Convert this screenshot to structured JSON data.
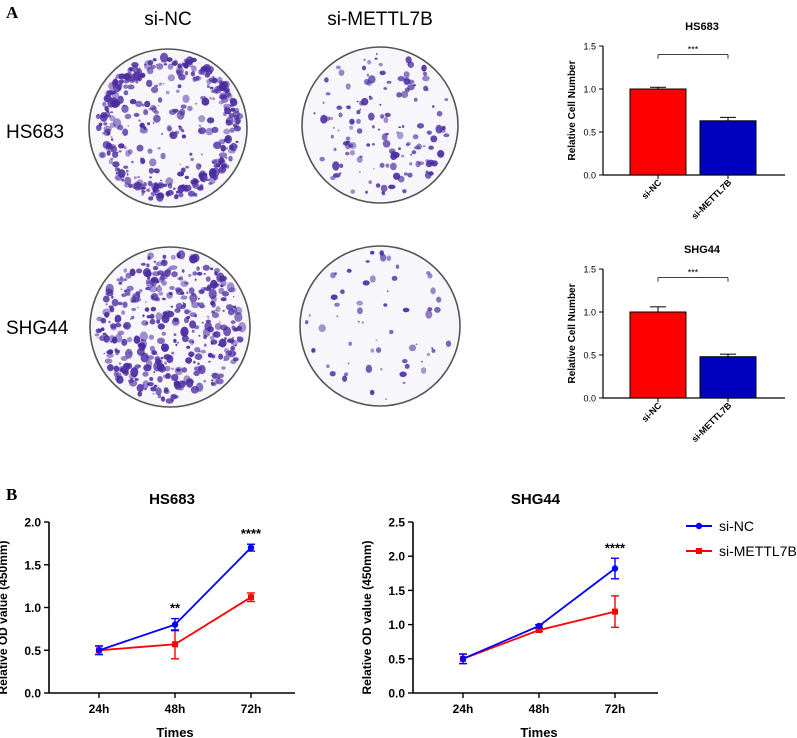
{
  "panel_a_label": "A",
  "panel_b_label": "B",
  "colony_columns": [
    "si-NC",
    "si-METTL7B"
  ],
  "colony_rows": [
    "HS683",
    "SHG44"
  ],
  "colors": {
    "si_nc": "#ff0000",
    "si_mettl7b": "#0000c0",
    "line_si_nc": "#0000ff",
    "line_si_mettl7b": "#ff0000",
    "stain": "#4b2aa0"
  },
  "chart_data": [
    {
      "type": "bar",
      "title": "HS683",
      "categories": [
        "si-NC",
        "si-METTL7B"
      ],
      "values": [
        1.0,
        0.63
      ],
      "errors": [
        0.02,
        0.04
      ],
      "ylabel": "Relative Cell Number",
      "xlabel": "",
      "ylim": [
        0,
        1.5
      ],
      "yticks": [
        "0.0",
        "0.5",
        "1.0",
        "1.5"
      ],
      "significance": "***"
    },
    {
      "type": "bar",
      "title": "SHG44",
      "categories": [
        "si-NC",
        "si-METTL7B"
      ],
      "values": [
        1.0,
        0.48
      ],
      "errors": [
        0.06,
        0.03
      ],
      "ylabel": "Relative Cell Number",
      "xlabel": "",
      "ylim": [
        0,
        1.5
      ],
      "yticks": [
        "0.0",
        "0.5",
        "1.0",
        "1.5"
      ],
      "significance": "***"
    },
    {
      "type": "line",
      "title": "HS683",
      "x": [
        "24h",
        "48h",
        "72h"
      ],
      "series": [
        {
          "name": "si-NC",
          "values": [
            0.5,
            0.8,
            1.7
          ],
          "errors": [
            0.05,
            0.07,
            0.04
          ]
        },
        {
          "name": "si-METTL7B",
          "values": [
            0.5,
            0.57,
            1.12
          ],
          "errors": [
            0.05,
            0.17,
            0.05
          ]
        }
      ],
      "xlabel": "Times",
      "ylabel": "Relative OD value (450mm)",
      "ylim": [
        0,
        2.0
      ],
      "yticks": [
        "0.0",
        "0.5",
        "1.0",
        "1.5",
        "2.0"
      ],
      "annotations": [
        {
          "x": "48h",
          "text": "**"
        },
        {
          "x": "72h",
          "text": "****"
        }
      ]
    },
    {
      "type": "line",
      "title": "SHG44",
      "x": [
        "24h",
        "48h",
        "72h"
      ],
      "series": [
        {
          "name": "si-NC",
          "values": [
            0.5,
            0.98,
            1.82
          ],
          "errors": [
            0.07,
            0.02,
            0.15
          ]
        },
        {
          "name": "si-METTL7B",
          "values": [
            0.5,
            0.92,
            1.19
          ],
          "errors": [
            0.07,
            0.02,
            0.23
          ]
        }
      ],
      "xlabel": "Times",
      "ylabel": "Relative OD value (450mm)",
      "ylim": [
        0,
        2.5
      ],
      "yticks": [
        "0.0",
        "0.5",
        "1.0",
        "1.5",
        "2.0",
        "2.5"
      ],
      "annotations": [
        {
          "x": "72h",
          "text": "****"
        }
      ]
    }
  ],
  "legend": {
    "items": [
      "si-NC",
      "si-METTL7B"
    ]
  }
}
